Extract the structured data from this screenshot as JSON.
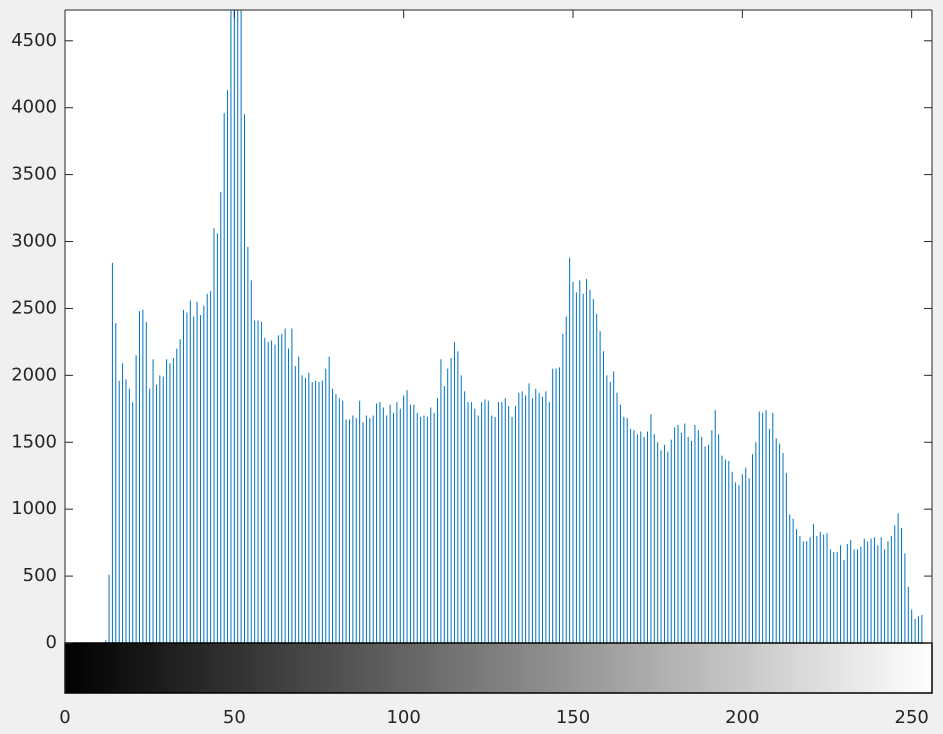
{
  "chart_data": {
    "type": "stem",
    "x": [
      0,
      1,
      2,
      3,
      4,
      5,
      6,
      7,
      8,
      9,
      10,
      11,
      12,
      13,
      14,
      15,
      16,
      17,
      18,
      19,
      20,
      21,
      22,
      23,
      24,
      25,
      26,
      27,
      28,
      29,
      30,
      31,
      32,
      33,
      34,
      35,
      36,
      37,
      38,
      39,
      40,
      41,
      42,
      43,
      44,
      45,
      46,
      47,
      48,
      49,
      50,
      51,
      52,
      53,
      54,
      55,
      56,
      57,
      58,
      59,
      60,
      61,
      62,
      63,
      64,
      65,
      66,
      67,
      68,
      69,
      70,
      71,
      72,
      73,
      74,
      75,
      76,
      77,
      78,
      79,
      80,
      81,
      82,
      83,
      84,
      85,
      86,
      87,
      88,
      89,
      90,
      91,
      92,
      93,
      94,
      95,
      96,
      97,
      98,
      99,
      100,
      101,
      102,
      103,
      104,
      105,
      106,
      107,
      108,
      109,
      110,
      111,
      112,
      113,
      114,
      115,
      116,
      117,
      118,
      119,
      120,
      121,
      122,
      123,
      124,
      125,
      126,
      127,
      128,
      129,
      130,
      131,
      132,
      133,
      134,
      135,
      136,
      137,
      138,
      139,
      140,
      141,
      142,
      143,
      144,
      145,
      146,
      147,
      148,
      149,
      150,
      151,
      152,
      153,
      154,
      155,
      156,
      157,
      158,
      159,
      160,
      161,
      162,
      163,
      164,
      165,
      166,
      167,
      168,
      169,
      170,
      171,
      172,
      173,
      174,
      175,
      176,
      177,
      178,
      179,
      180,
      181,
      182,
      183,
      184,
      185,
      186,
      187,
      188,
      189,
      190,
      191,
      192,
      193,
      194,
      195,
      196,
      197,
      198,
      199,
      200,
      201,
      202,
      203,
      204,
      205,
      206,
      207,
      208,
      209,
      210,
      211,
      212,
      213,
      214,
      215,
      216,
      217,
      218,
      219,
      220,
      221,
      222,
      223,
      224,
      225,
      226,
      227,
      228,
      229,
      230,
      231,
      232,
      233,
      234,
      235,
      236,
      237,
      238,
      239,
      240,
      241,
      242,
      243,
      244,
      245,
      246,
      247,
      248,
      249,
      250,
      251,
      252,
      253,
      254,
      255
    ],
    "values": [
      0,
      0,
      0,
      0,
      0,
      0,
      0,
      0,
      0,
      0,
      0,
      0,
      20,
      510,
      2840,
      2390,
      1960,
      2090,
      1970,
      1900,
      1800,
      2150,
      2480,
      2490,
      2400,
      1900,
      2120,
      1930,
      2000,
      1990,
      2120,
      2090,
      2130,
      2200,
      2270,
      2490,
      2470,
      2560,
      2440,
      2550,
      2450,
      2520,
      2610,
      2630,
      3100,
      3060,
      3370,
      3960,
      4130,
      4800,
      5200,
      5000,
      4800,
      3950,
      2960,
      2710,
      2410,
      2410,
      2400,
      2280,
      2250,
      2260,
      2230,
      2300,
      2310,
      2350,
      2200,
      2350,
      2070,
      2140,
      2000,
      1980,
      2020,
      1950,
      1960,
      1950,
      1960,
      2050,
      2140,
      1900,
      1860,
      1830,
      1810,
      1670,
      1670,
      1700,
      1680,
      1810,
      1650,
      1700,
      1680,
      1700,
      1790,
      1800,
      1760,
      1700,
      1780,
      1720,
      1800,
      1750,
      1850,
      1890,
      1780,
      1780,
      1720,
      1690,
      1700,
      1690,
      1760,
      1720,
      1830,
      2120,
      1920,
      2050,
      2130,
      2250,
      2180,
      2000,
      1880,
      1800,
      1800,
      1750,
      1700,
      1800,
      1820,
      1810,
      1700,
      1690,
      1800,
      1800,
      1830,
      1770,
      1690,
      1770,
      1870,
      1880,
      1850,
      1940,
      1830,
      1900,
      1870,
      1840,
      1880,
      1800,
      2050,
      2050,
      2060,
      2310,
      2440,
      2880,
      2700,
      2620,
      2710,
      2610,
      2720,
      2640,
      2570,
      2460,
      2330,
      2180,
      2000,
      1950,
      2030,
      1870,
      1780,
      1690,
      1680,
      1600,
      1590,
      1560,
      1580,
      1540,
      1580,
      1710,
      1560,
      1500,
      1440,
      1480,
      1430,
      1520,
      1610,
      1630,
      1570,
      1640,
      1540,
      1510,
      1630,
      1590,
      1540,
      1470,
      1480,
      1590,
      1740,
      1560,
      1400,
      1370,
      1360,
      1280,
      1200,
      1180,
      1260,
      1310,
      1230,
      1410,
      1500,
      1730,
      1720,
      1740,
      1600,
      1720,
      1530,
      1490,
      1420,
      1270,
      960,
      930,
      850,
      800,
      760,
      760,
      790,
      890,
      800,
      830,
      810,
      820,
      700,
      680,
      680,
      730,
      620,
      740,
      770,
      700,
      700,
      720,
      780,
      760,
      780,
      790,
      730,
      790,
      700,
      760,
      800,
      880,
      970,
      860,
      670,
      420,
      250,
      180,
      200,
      210,
      0,
      0
    ],
    "color": "#0072bd",
    "xlim": [
      0,
      256
    ],
    "xticks": [
      0,
      50,
      100,
      150,
      200,
      250
    ],
    "ylim": [
      0,
      4730
    ],
    "yticks": [
      0,
      500,
      1000,
      1500,
      2000,
      2500,
      3000,
      3500,
      4000,
      4500
    ]
  }
}
